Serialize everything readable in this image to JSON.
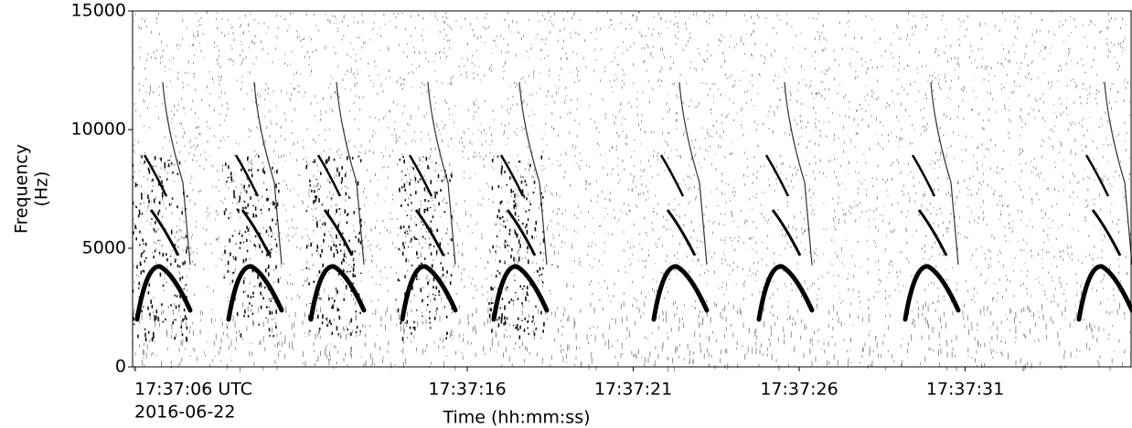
{
  "chart_data": {
    "type": "spectrogram",
    "ylabel": [
      "Frequency",
      "(Hz)"
    ],
    "xlabel": "Time (hh:mm:ss)",
    "date": "2016-06-22",
    "ylim": [
      0,
      15000
    ],
    "yticks": [
      0,
      5000,
      10000,
      15000
    ],
    "xlim": [
      "17:37:06",
      "17:37:36"
    ],
    "xticks": [
      {
        "value": "17:37:06",
        "label": "17:37:06 UTC"
      },
      "17:37:16",
      "17:37:21",
      "17:37:26",
      "17:37:31"
    ],
    "color": "#000000"
  }
}
